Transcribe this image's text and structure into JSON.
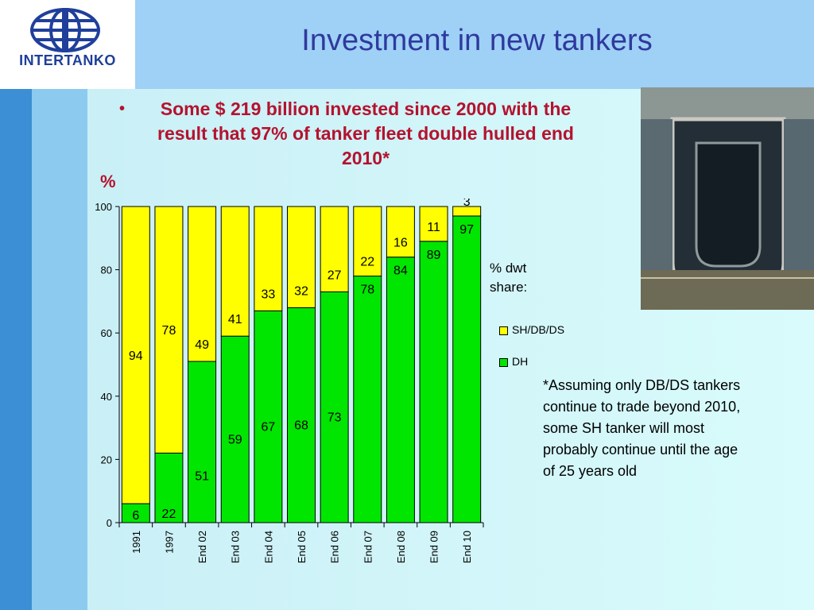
{
  "slide": {
    "title": "Investment in new tankers",
    "logo_text": "INTERTANKO",
    "bullet": "Some $ 219 billion invested since 2000 with the result that 97% of tanker fleet double hulled end 2010*",
    "y_unit_label": "%",
    "share_label_line1": "% dwt",
    "share_label_line2": "share:",
    "footnote": "*Assuming only DB/DS tankers continue to trade beyond 2010, some SH tanker will most probably continue until the age of 25 years old",
    "photo_icon": "ship-hull-construction-photo",
    "colors": {
      "title": "#2e3a9e",
      "bullet": "#b5122e",
      "background": "#c8f0f4",
      "accent": "#9fd0f0"
    }
  },
  "chart_data": {
    "type": "bar",
    "stacked": true,
    "categories": [
      "1991",
      "1997",
      "End 02",
      "End 03",
      "End 04",
      "End 05",
      "End 06",
      "End 07",
      "End 08",
      "End 09",
      "End 10"
    ],
    "series": [
      {
        "name": "DH",
        "color": "#00e600",
        "values": [
          6,
          22,
          51,
          59,
          67,
          68,
          73,
          78,
          84,
          89,
          97
        ]
      },
      {
        "name": "SH/DB/DS",
        "color": "#ffff00",
        "values": [
          94,
          78,
          49,
          41,
          33,
          32,
          27,
          22,
          16,
          11,
          3
        ]
      }
    ],
    "ylim": [
      0,
      100
    ],
    "yticks": [
      0,
      20,
      40,
      60,
      80,
      100
    ],
    "legend_position": "right",
    "grid": false
  }
}
